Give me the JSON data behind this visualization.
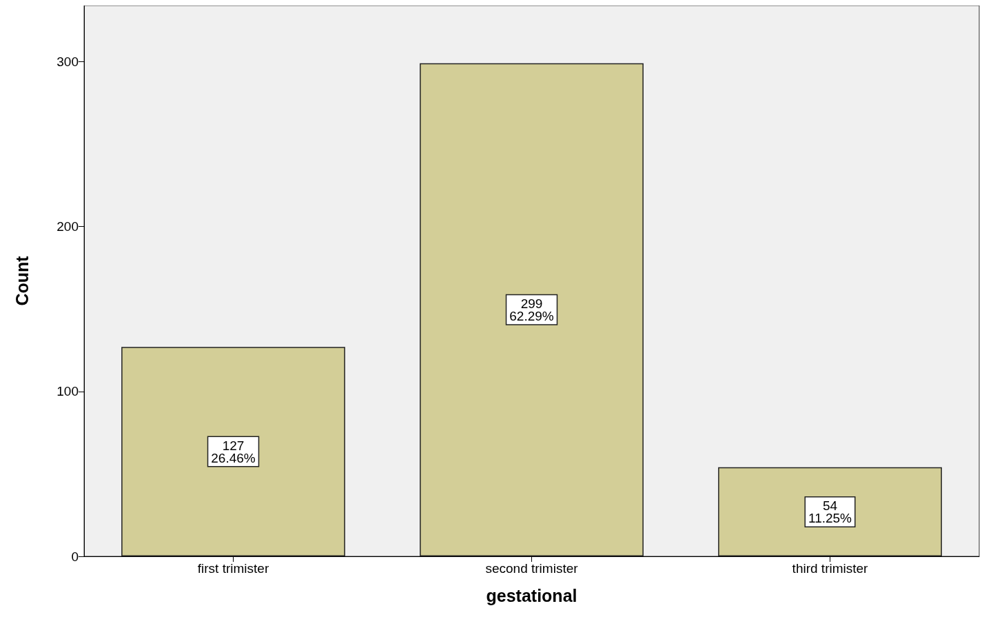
{
  "chart_data": {
    "type": "bar",
    "xlabel": "gestational",
    "ylabel": "Count",
    "categories": [
      "first trimister",
      "second trimister",
      "third trimister"
    ],
    "values": [
      127,
      299,
      54
    ],
    "value_labels": [
      "127\n26.46%",
      "299\n62.29%",
      "54\n11.25%"
    ],
    "color": "#d3ce97",
    "ylim": [
      0,
      334
    ],
    "yticks": [
      0,
      100,
      200,
      300
    ],
    "grid": false
  }
}
